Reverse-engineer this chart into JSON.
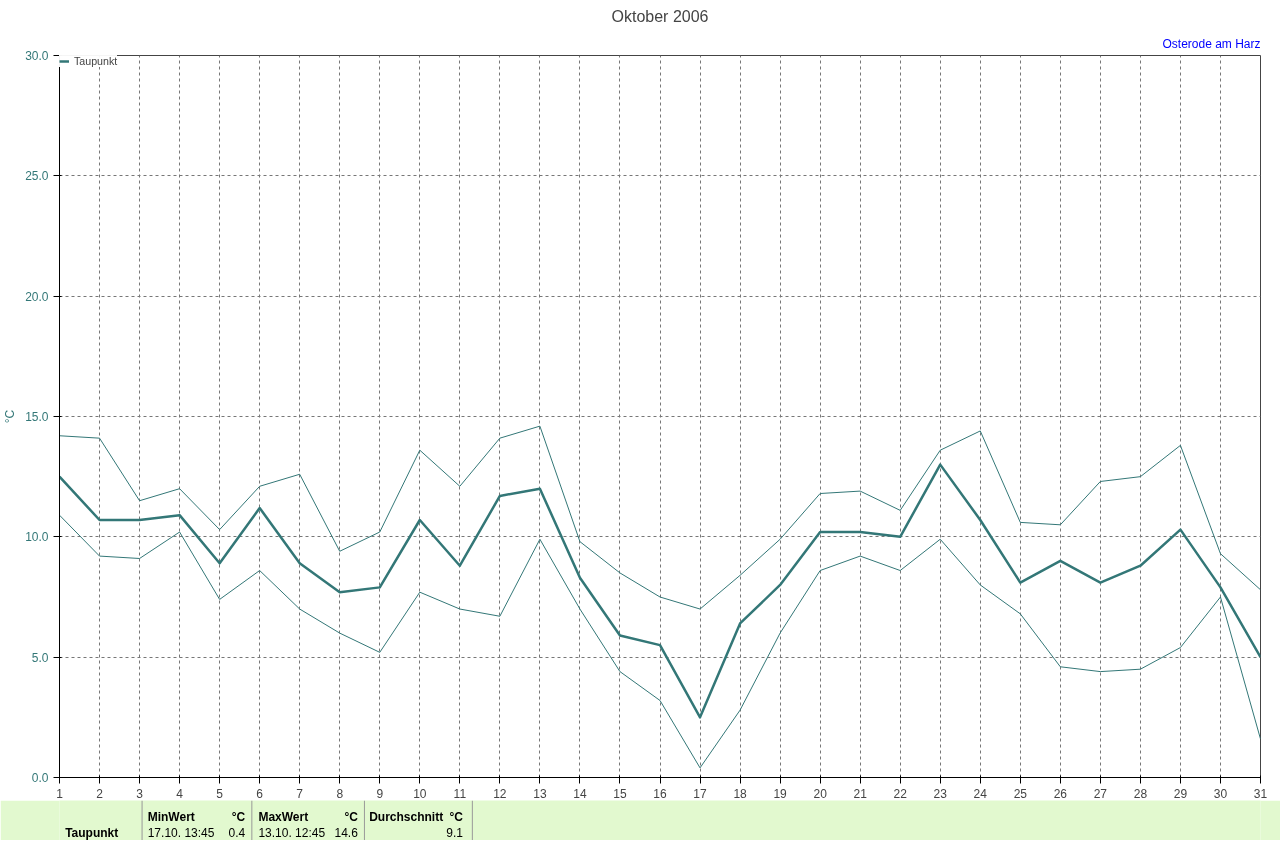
{
  "chart_data": {
    "type": "line",
    "title": "Oktober 2006",
    "subtitle": "Osterode am Harz",
    "ylabel": "°C",
    "x": [
      1,
      2,
      3,
      4,
      5,
      6,
      7,
      8,
      9,
      10,
      11,
      12,
      13,
      14,
      15,
      16,
      17,
      18,
      19,
      20,
      21,
      22,
      23,
      24,
      25,
      26,
      27,
      28,
      29,
      30,
      31
    ],
    "series": [
      {
        "name": "Taupunkt",
        "color": "#337777",
        "values": [
          12.5,
          10.7,
          10.7,
          10.9,
          8.9,
          11.2,
          8.9,
          7.7,
          7.9,
          10.7,
          8.8,
          11.7,
          12.0,
          8.3,
          5.9,
          5.5,
          2.5,
          6.4,
          8.0,
          10.2,
          10.2,
          10.0,
          13.0,
          10.7,
          8.1,
          9.0,
          8.1,
          8.8,
          10.3,
          7.9,
          5.0
        ]
      },
      {
        "color": "#337777",
        "values": [
          14.2,
          14.1,
          11.5,
          12.0,
          10.3,
          12.1,
          12.6,
          9.4,
          10.2,
          13.6,
          12.1,
          14.1,
          14.6,
          9.8,
          8.5,
          7.5,
          7.0,
          8.4,
          9.9,
          11.8,
          11.9,
          11.1,
          13.6,
          14.4,
          10.6,
          10.5,
          12.3,
          12.5,
          13.8,
          9.3,
          7.8
        ]
      },
      {
        "color": "#337777",
        "values": [
          10.9,
          9.2,
          9.1,
          10.2,
          7.4,
          8.6,
          7.0,
          6.0,
          5.2,
          7.7,
          7.0,
          6.7,
          9.9,
          7.0,
          4.4,
          3.2,
          0.4,
          2.8,
          6.0,
          8.6,
          9.2,
          8.6,
          9.9,
          8.0,
          6.8,
          4.6,
          4.4,
          4.5,
          5.4,
          7.5,
          1.6
        ]
      }
    ],
    "xlim": [
      1,
      31
    ],
    "xticks": [
      1,
      2,
      3,
      4,
      5,
      6,
      7,
      8,
      9,
      10,
      11,
      12,
      13,
      14,
      15,
      16,
      17,
      18,
      19,
      20,
      21,
      22,
      23,
      24,
      25,
      26,
      27,
      28,
      29,
      30,
      31
    ],
    "ylim": [
      0,
      30
    ],
    "yticks": [
      {
        "value": 0,
        "label": "0.0"
      },
      {
        "value": 5,
        "label": "5.0"
      },
      {
        "value": 10,
        "label": "10.0"
      },
      {
        "value": 15,
        "label": "15.0"
      },
      {
        "value": 20,
        "label": "20.0"
      },
      {
        "value": 25,
        "label": "25.0"
      },
      {
        "value": 30,
        "label": "30.0"
      }
    ],
    "grid": true,
    "legend": "top left",
    "marker": "none",
    "line_style": "solid",
    "annotations": [
      "Taupunkt",
      "MinWert",
      "°C",
      "17.10.  13:45",
      "0.4",
      "MaxWert",
      "°C",
      "13.10.  12:45",
      "14.6",
      "Durchschnitt",
      "°C",
      "9.1"
    ]
  }
}
